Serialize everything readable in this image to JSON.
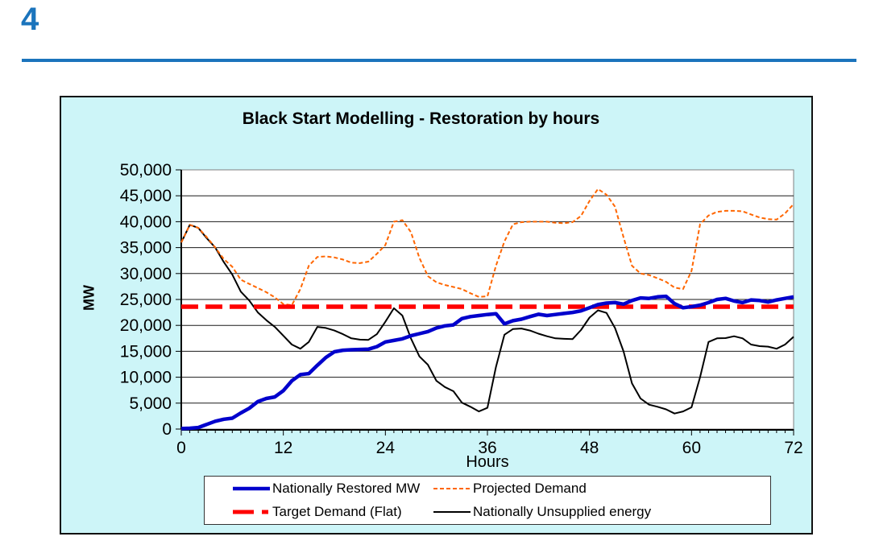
{
  "page": {
    "number": "4",
    "accent_color": "#1b74bc"
  },
  "chart": {
    "title": "Black Start Modelling - Restoration by hours",
    "y_axis_title": "MW",
    "x_axis_title": "Hours",
    "background_color": "#cdf5f8",
    "plot_background_color": "#ffffff"
  },
  "chart_data": {
    "type": "line",
    "title": "Black Start Modelling - Restoration by hours",
    "xlabel": "Hours",
    "ylabel": "MW",
    "xlim": [
      0,
      72
    ],
    "ylim": [
      0,
      50000
    ],
    "grid": "horizontal",
    "legend_position": "bottom",
    "x_major_ticks": [
      0,
      12,
      24,
      36,
      48,
      60,
      72
    ],
    "x_tick_labels": [
      "0",
      "12",
      "24",
      "36",
      "48",
      "60",
      "72"
    ],
    "x_minor_tick_step": 1,
    "y_ticks": [
      0,
      5000,
      10000,
      15000,
      20000,
      25000,
      30000,
      35000,
      40000,
      45000,
      50000
    ],
    "y_tick_labels": [
      "0",
      "5,000",
      "10,000",
      "15,000",
      "20,000",
      "25,000",
      "30,000",
      "35,000",
      "40,000",
      "45,000",
      "50,000"
    ],
    "x": [
      0,
      1,
      2,
      3,
      4,
      5,
      6,
      7,
      8,
      9,
      10,
      11,
      12,
      13,
      14,
      15,
      16,
      17,
      18,
      19,
      20,
      21,
      22,
      23,
      24,
      25,
      26,
      27,
      28,
      29,
      30,
      31,
      32,
      33,
      34,
      35,
      36,
      37,
      38,
      39,
      40,
      41,
      42,
      43,
      44,
      45,
      46,
      47,
      48,
      49,
      50,
      51,
      52,
      53,
      54,
      55,
      56,
      57,
      58,
      59,
      60,
      61,
      62,
      63,
      64,
      65,
      66,
      67,
      68,
      69,
      70,
      71,
      72
    ],
    "series": [
      {
        "name": "Nationally Restored MW",
        "color": "#0000cc",
        "width": 4.5,
        "dash": "",
        "values": [
          100,
          150,
          300,
          900,
          1500,
          1900,
          2100,
          3100,
          4000,
          5300,
          5900,
          6200,
          7400,
          9300,
          10500,
          10700,
          12300,
          13800,
          14900,
          15200,
          15300,
          15350,
          15400,
          15900,
          16800,
          17100,
          17400,
          18000,
          18400,
          18800,
          19500,
          19900,
          20100,
          21300,
          21700,
          21900,
          22100,
          22250,
          20300,
          20900,
          21200,
          21700,
          22150,
          21900,
          22100,
          22300,
          22500,
          22800,
          23400,
          24000,
          24300,
          24400,
          24100,
          24800,
          25300,
          25200,
          25500,
          25600,
          24200,
          23400,
          23600,
          23900,
          24400,
          25000,
          25200,
          24700,
          24400,
          24900,
          24800,
          24500,
          24900,
          25200,
          25500
        ]
      },
      {
        "name": "Projected Demand",
        "color": "#ff6600",
        "width": 2,
        "dash": "5 3",
        "values": [
          36000,
          39400,
          38800,
          37000,
          35000,
          32800,
          31300,
          28800,
          28000,
          27200,
          26400,
          25400,
          24100,
          23900,
          27000,
          31500,
          33200,
          33300,
          33100,
          32700,
          32100,
          32000,
          32300,
          33800,
          35500,
          40000,
          40300,
          38000,
          33000,
          29500,
          28300,
          27800,
          27400,
          27000,
          26200,
          25500,
          25600,
          31500,
          36200,
          39500,
          39900,
          40000,
          40000,
          40000,
          39800,
          39700,
          39900,
          41100,
          44000,
          46300,
          45200,
          42900,
          37000,
          31500,
          30000,
          29700,
          29100,
          28400,
          27300,
          27000,
          30500,
          39500,
          41200,
          41900,
          42100,
          42100,
          42000,
          41400,
          40800,
          40500,
          40400,
          41600,
          43400
        ]
      },
      {
        "name": "Target Demand (Flat)",
        "color": "#ff0000",
        "width": 5.5,
        "dash": "21 9",
        "flat_value": 23600
      },
      {
        "name": "Nationally Unsupplied energy",
        "color": "#000000",
        "width": 2,
        "dash": "",
        "values": [
          36000,
          39400,
          38800,
          36800,
          35000,
          32200,
          29800,
          26500,
          24800,
          22500,
          21000,
          19700,
          18000,
          16300,
          15500,
          16800,
          19700,
          19500,
          19000,
          18300,
          17500,
          17250,
          17200,
          18300,
          20700,
          23300,
          21900,
          17500,
          14000,
          12400,
          9300,
          8100,
          7300,
          5100,
          4300,
          3400,
          4100,
          12000,
          18200,
          19300,
          19400,
          19000,
          18400,
          17900,
          17500,
          17400,
          17350,
          19100,
          21500,
          22900,
          22400,
          19500,
          15000,
          8800,
          5900,
          4700,
          4300,
          3800,
          3000,
          3400,
          4200,
          10000,
          16800,
          17500,
          17550,
          17900,
          17500,
          16300,
          16000,
          15900,
          15500,
          16300,
          17800
        ]
      }
    ],
    "draw_order": [
      3,
      1,
      2,
      0
    ]
  }
}
